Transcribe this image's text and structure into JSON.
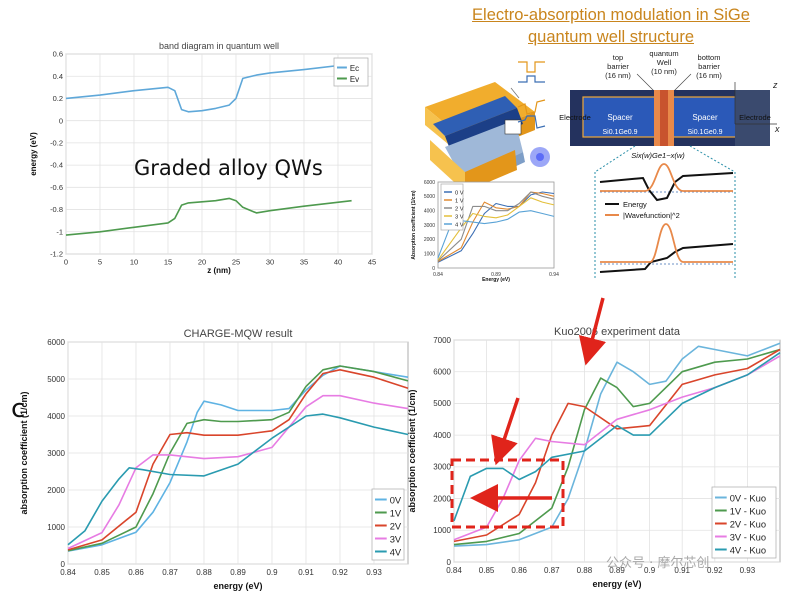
{
  "page": {
    "title_line1": "Electro-absorption modulation in SiGe",
    "title_line2": "quantum well structure",
    "graded_label": "Graded alloy QWs",
    "panel_letter": "c",
    "watermark": "公众号 · 摩尔芯创"
  },
  "schematic": {
    "top_barrier": [
      "top",
      "barrier",
      "(16 nm)"
    ],
    "quantum_well": [
      "quantum",
      "Well",
      "(10 nm)"
    ],
    "bottom_barrier": [
      "bottom",
      "barrier",
      "(16 nm)"
    ],
    "spacer_left": "Spacer",
    "spacer_right": "Spacer",
    "electrode_left": "Electrode",
    "electrode_right": "Electrode",
    "layer_left": "Si0.1Ge0.9",
    "layer_right": "Si0.1Ge0.9",
    "well_formula": "Six(w)Ge1−x(w)",
    "axis_z": "z",
    "axis_x": "x",
    "legend_energy": "Energy",
    "legend_wavefunction": "|Wavefunction|^2"
  },
  "chart_data": [
    {
      "id": "band",
      "type": "line",
      "title": "band diagram in quantum well",
      "xlabel": "z (nm)",
      "ylabel": "energy (eV)",
      "xlim": [
        0,
        45
      ],
      "ylim": [
        -1.2,
        0.6
      ],
      "xticks": [
        "0",
        "5",
        "10",
        "15",
        "20",
        "25",
        "30",
        "35",
        "40",
        "45"
      ],
      "yticks": [
        "0.6",
        "0.4",
        "0.2",
        "0",
        "-0.2",
        "-0.4",
        "-0.6",
        "-0.8",
        "-1",
        "-1.2"
      ],
      "grid": true,
      "legend_position": "top-right",
      "colors": [
        "#5fa8d9",
        "#4e9a4e"
      ],
      "series": [
        {
          "name": "Ec",
          "x": [
            0,
            5,
            10,
            15,
            16,
            17,
            18,
            20,
            22,
            24,
            25,
            26,
            28,
            30,
            35,
            42
          ],
          "y": [
            0.2,
            0.23,
            0.27,
            0.3,
            0.27,
            0.1,
            0.08,
            0.09,
            0.11,
            0.14,
            0.2,
            0.38,
            0.41,
            0.43,
            0.46,
            0.51
          ]
        },
        {
          "name": "Ev",
          "x": [
            0,
            5,
            10,
            15,
            16,
            17,
            18,
            20,
            22,
            24,
            25,
            26,
            28,
            30,
            35,
            42
          ],
          "y": [
            -1.03,
            -1.0,
            -0.96,
            -0.92,
            -0.88,
            -0.76,
            -0.74,
            -0.73,
            -0.72,
            -0.7,
            -0.72,
            -0.78,
            -0.83,
            -0.81,
            -0.77,
            -0.72
          ]
        }
      ]
    },
    {
      "id": "inset",
      "type": "line",
      "title": "",
      "xlabel": "Energy (eV)",
      "ylabel": "Absorption coefficient (1/cm)",
      "xlim": [
        0.84,
        0.94
      ],
      "ylim": [
        0,
        6000
      ],
      "xticks": [
        "0.84",
        "0.89",
        "0.94"
      ],
      "yticks": [
        "6000",
        "5000",
        "4000",
        "3000",
        "2000",
        "1000",
        "0"
      ],
      "grid": false,
      "legend_position": "top-left",
      "colors": [
        "#3c6fb4",
        "#e08a32",
        "#8c8c8c",
        "#e3bf3a",
        "#5aa3d6"
      ],
      "series": [
        {
          "name": "0 V",
          "x": [
            0.84,
            0.86,
            0.87,
            0.88,
            0.89,
            0.9,
            0.91,
            0.92,
            0.93,
            0.94
          ],
          "y": [
            400,
            1200,
            2400,
            3800,
            4500,
            4300,
            4300,
            5100,
            5300,
            5200
          ]
        },
        {
          "name": "1 V",
          "x": [
            0.84,
            0.86,
            0.87,
            0.88,
            0.89,
            0.9,
            0.91,
            0.92,
            0.93,
            0.94
          ],
          "y": [
            450,
            1400,
            3200,
            4600,
            4200,
            4100,
            4300,
            5300,
            5200,
            5000
          ]
        },
        {
          "name": "2 V",
          "x": [
            0.84,
            0.86,
            0.87,
            0.88,
            0.89,
            0.9,
            0.91,
            0.92,
            0.93,
            0.94
          ],
          "y": [
            500,
            2000,
            4300,
            4300,
            4000,
            4000,
            4500,
            5300,
            5000,
            4800
          ]
        },
        {
          "name": "3 V",
          "x": [
            0.84,
            0.86,
            0.87,
            0.88,
            0.89,
            0.9,
            0.91,
            0.92,
            0.93,
            0.94
          ],
          "y": [
            550,
            2800,
            3800,
            3600,
            3500,
            3700,
            4300,
            4900,
            4600,
            4400
          ]
        },
        {
          "name": "4 V",
          "x": [
            0.84,
            0.85,
            0.86,
            0.87,
            0.88,
            0.89,
            0.9,
            0.91,
            0.92,
            0.93,
            0.94
          ],
          "y": [
            700,
            2800,
            3300,
            3200,
            3100,
            3200,
            3400,
            3900,
            4000,
            3800,
            3600
          ]
        }
      ]
    },
    {
      "id": "charge",
      "type": "line",
      "title": "CHARGE-MQW result",
      "xlabel": "energy (eV)",
      "ylabel": "absorption coefficient (1/cm)",
      "xlim": [
        0.84,
        0.94
      ],
      "ylim": [
        0,
        6000
      ],
      "xticks": [
        "0.84",
        "0.85",
        "0.86",
        "0.87",
        "0.88",
        "0.89",
        "0.9",
        "0.91",
        "0.92",
        "0.93"
      ],
      "yticks": [
        "6000",
        "5000",
        "4000",
        "3000",
        "2000",
        "1000",
        "0"
      ],
      "grid": true,
      "legend_position": "bottom-right",
      "colors": [
        "#5fb3e3",
        "#4e9a4e",
        "#d9452b",
        "#e77ce3",
        "#2a9bb0"
      ],
      "series": [
        {
          "name": "0V",
          "x": [
            0.84,
            0.85,
            0.86,
            0.865,
            0.87,
            0.875,
            0.878,
            0.88,
            0.885,
            0.89,
            0.9,
            0.905,
            0.91,
            0.915,
            0.92,
            0.93,
            0.94
          ],
          "y": [
            350,
            520,
            860,
            1400,
            2200,
            3300,
            4100,
            4400,
            4300,
            4150,
            4150,
            4200,
            4700,
            5100,
            5350,
            5200,
            5050
          ]
        },
        {
          "name": "1V",
          "x": [
            0.84,
            0.85,
            0.86,
            0.865,
            0.87,
            0.875,
            0.88,
            0.885,
            0.89,
            0.9,
            0.905,
            0.91,
            0.915,
            0.92,
            0.93,
            0.94
          ],
          "y": [
            360,
            560,
            1000,
            1900,
            3000,
            3800,
            3900,
            3850,
            3850,
            3900,
            4100,
            4800,
            5250,
            5350,
            5200,
            4950
          ]
        },
        {
          "name": "2V",
          "x": [
            0.84,
            0.85,
            0.86,
            0.865,
            0.87,
            0.875,
            0.88,
            0.89,
            0.9,
            0.905,
            0.91,
            0.915,
            0.92,
            0.93,
            0.94
          ],
          "y": [
            380,
            650,
            1400,
            2700,
            3500,
            3550,
            3480,
            3480,
            3600,
            3900,
            4600,
            5150,
            5250,
            5050,
            4750
          ]
        },
        {
          "name": "3V",
          "x": [
            0.84,
            0.85,
            0.855,
            0.86,
            0.865,
            0.87,
            0.88,
            0.89,
            0.9,
            0.91,
            0.915,
            0.92,
            0.93,
            0.94
          ],
          "y": [
            420,
            850,
            1600,
            2600,
            2950,
            2950,
            2850,
            2900,
            3150,
            4250,
            4550,
            4550,
            4350,
            4200
          ]
        },
        {
          "name": "4V",
          "x": [
            0.84,
            0.845,
            0.85,
            0.855,
            0.858,
            0.862,
            0.87,
            0.88,
            0.89,
            0.9,
            0.91,
            0.915,
            0.92,
            0.93,
            0.94
          ],
          "y": [
            520,
            900,
            1700,
            2300,
            2600,
            2550,
            2420,
            2380,
            2700,
            3400,
            4000,
            4050,
            3950,
            3700,
            3500
          ]
        }
      ]
    },
    {
      "id": "kuo",
      "type": "line",
      "title": "Kuo2006 experiment data",
      "xlabel": "energy (eV)",
      "ylabel": "absorption coefficient (1/cm)",
      "xlim": [
        0.84,
        0.94
      ],
      "ylim": [
        0,
        7000
      ],
      "xticks": [
        "0.84",
        "0.85",
        "0.86",
        "0.87",
        "0.88",
        "0.89",
        "0.9",
        "0.91",
        "0.92",
        "0.93"
      ],
      "yticks": [
        "7000",
        "6000",
        "5000",
        "4000",
        "3000",
        "2000",
        "1000",
        "0"
      ],
      "grid": true,
      "legend_position": "bottom-right",
      "colors": [
        "#6bb5dc",
        "#4e9a4e",
        "#d9452b",
        "#e77ce3",
        "#2a9bb0"
      ],
      "series": [
        {
          "name": "0V - Kuo",
          "x": [
            0.84,
            0.85,
            0.86,
            0.87,
            0.875,
            0.88,
            0.885,
            0.89,
            0.895,
            0.9,
            0.905,
            0.91,
            0.915,
            0.92,
            0.93,
            0.94
          ],
          "y": [
            500,
            550,
            700,
            1100,
            2000,
            3500,
            5300,
            6300,
            6000,
            5600,
            5700,
            6400,
            6800,
            6700,
            6500,
            6900
          ]
        },
        {
          "name": "1V - Kuo",
          "x": [
            0.84,
            0.85,
            0.86,
            0.87,
            0.875,
            0.88,
            0.885,
            0.89,
            0.895,
            0.9,
            0.91,
            0.92,
            0.93,
            0.94
          ],
          "y": [
            550,
            650,
            900,
            1700,
            3000,
            4800,
            5800,
            5500,
            4900,
            5000,
            6000,
            6300,
            6400,
            6700
          ]
        },
        {
          "name": "2V - Kuo",
          "x": [
            0.84,
            0.85,
            0.86,
            0.865,
            0.87,
            0.875,
            0.88,
            0.89,
            0.9,
            0.91,
            0.92,
            0.93,
            0.94
          ],
          "y": [
            650,
            850,
            1500,
            2500,
            4000,
            5000,
            4900,
            4200,
            4300,
            5600,
            5900,
            6100,
            6700
          ]
        },
        {
          "name": "3V - Kuo",
          "x": [
            0.84,
            0.85,
            0.855,
            0.86,
            0.865,
            0.87,
            0.88,
            0.89,
            0.9,
            0.91,
            0.92,
            0.93,
            0.94
          ],
          "y": [
            700,
            1100,
            2000,
            3200,
            3900,
            3800,
            3700,
            4500,
            4800,
            5200,
            5500,
            5900,
            6500
          ]
        },
        {
          "name": "4V - Kuo",
          "x": [
            0.84,
            0.845,
            0.85,
            0.855,
            0.86,
            0.865,
            0.87,
            0.88,
            0.89,
            0.895,
            0.9,
            0.91,
            0.92,
            0.93,
            0.94
          ],
          "y": [
            1300,
            2700,
            2950,
            2950,
            2600,
            2850,
            3300,
            3500,
            4300,
            4000,
            4000,
            5000,
            5500,
            5900,
            6600
          ]
        }
      ]
    }
  ]
}
